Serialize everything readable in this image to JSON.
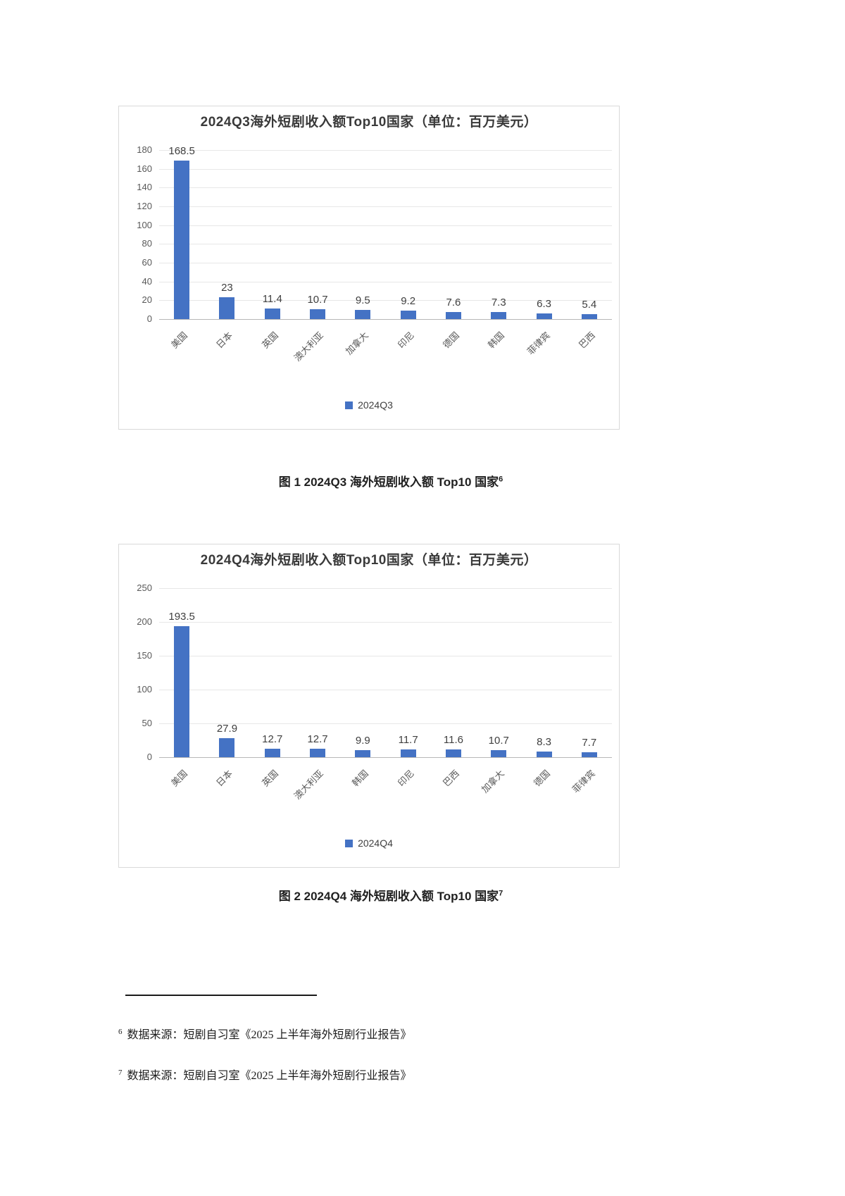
{
  "chart_data": [
    {
      "type": "bar",
      "title": "2024Q3海外短剧收入额Top10国家（单位：百万美元）",
      "categories": [
        "美国",
        "日本",
        "英国",
        "澳大利亚",
        "加拿大",
        "印尼",
        "德国",
        "韩国",
        "菲律宾",
        "巴西"
      ],
      "values": [
        168.5,
        23,
        11.4,
        10.7,
        9.5,
        9.2,
        7.6,
        7.3,
        6.3,
        5.4
      ],
      "value_labels": [
        "168.5",
        "23",
        "11.4",
        "10.7",
        "9.5",
        "9.2",
        "7.6",
        "7.3",
        "6.3",
        "5.4"
      ],
      "legend": [
        "2024Q3"
      ],
      "legend_position": "bottom",
      "xlabel": "",
      "ylabel": "",
      "ylim": [
        0,
        180
      ],
      "ytick_step": 20,
      "grid": true,
      "bar_color": "#4472C4"
    },
    {
      "type": "bar",
      "title": "2024Q4海外短剧收入额Top10国家（单位：百万美元）",
      "categories": [
        "美国",
        "日本",
        "英国",
        "澳大利亚",
        "韩国",
        "印尼",
        "巴西",
        "加拿大",
        "德国",
        "菲律宾"
      ],
      "values": [
        193.5,
        27.9,
        12.7,
        12.7,
        9.9,
        11.7,
        11.6,
        10.7,
        8.3,
        7.7
      ],
      "value_labels": [
        "193.5",
        "27.9",
        "12.7",
        "12.7",
        "9.9",
        "11.7",
        "11.6",
        "10.7",
        "8.3",
        "7.7"
      ],
      "legend": [
        "2024Q4"
      ],
      "legend_position": "bottom",
      "xlabel": "",
      "ylabel": "",
      "ylim": [
        0,
        250
      ],
      "ytick_step": 50,
      "grid": true,
      "bar_color": "#4472C4"
    }
  ],
  "captions": [
    {
      "text": "图  1 2024Q3 海外短剧收入额 Top10 国家",
      "sup": "6"
    },
    {
      "text": "图  2 2024Q4 海外短剧收入额 Top10 国家",
      "sup": "7"
    }
  ],
  "footnotes": [
    {
      "sup": "6",
      "text": "数据来源：短剧自习室《2025 上半年海外短剧行业报告》"
    },
    {
      "sup": "7",
      "text": "数据来源：短剧自习室《2025 上半年海外短剧行业报告》"
    }
  ]
}
